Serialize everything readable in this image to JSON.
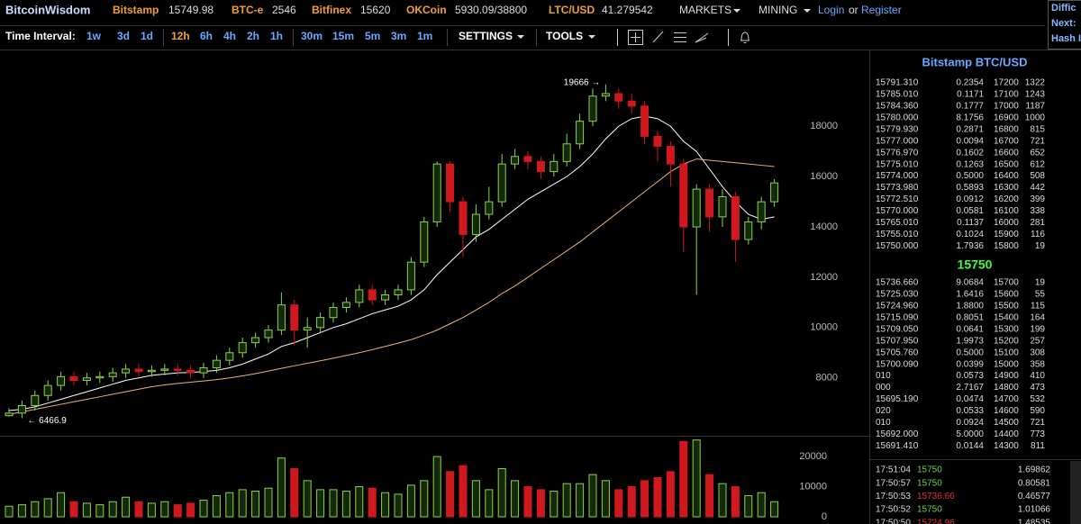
{
  "header": {
    "brand": "BitcoinWisdom",
    "tickers": [
      {
        "exchange": "Bitstamp",
        "price": "15749.98"
      },
      {
        "exchange": "BTC-e",
        "price": "2546"
      },
      {
        "exchange": "Bitfinex",
        "price": "15620"
      },
      {
        "exchange": "OKCoin",
        "price": "5930.09/38800"
      },
      {
        "exchange": "LTC/USD",
        "price": "41.279542"
      }
    ],
    "menus": [
      "MARKETS",
      "MINING"
    ],
    "login": "Login",
    "or": "or",
    "register": "Register",
    "side_box": [
      "Diffic",
      "Next:",
      "Hash I"
    ]
  },
  "toolbar": {
    "label": "Time Interval:",
    "intervals": [
      "1w",
      "3d",
      "1d",
      "12h",
      "6h",
      "4h",
      "2h",
      "1h",
      "30m",
      "15m",
      "5m",
      "3m",
      "1m"
    ],
    "active": "12h",
    "menus": [
      "SETTINGS",
      "TOOLS"
    ]
  },
  "chart": {
    "type": "candlestick",
    "open": [
      6500,
      6600,
      6900,
      7300,
      7700,
      8050,
      7900,
      8000,
      8050,
      8200,
      8350,
      8250,
      8300,
      8350,
      8300,
      8200,
      8400,
      8700,
      9000,
      9400,
      9600,
      9900,
      10900,
      9900,
      10000,
      10400,
      10800,
      11000,
      11500,
      11100,
      11300,
      11500,
      12600,
      14200,
      16500,
      15000,
      13700,
      14500,
      15000,
      16500,
      16800,
      16600,
      16200,
      16600,
      17300,
      18200,
      19200,
      19300,
      19000,
      18800,
      17600,
      17200,
      16500,
      14000,
      15500,
      14400,
      15200,
      13500,
      14200,
      15000
    ],
    "high": [
      6800,
      7100,
      7500,
      7900,
      8250,
      8250,
      8200,
      8250,
      8400,
      8550,
      8550,
      8500,
      8550,
      8550,
      8500,
      8600,
      8900,
      9200,
      9600,
      9800,
      10100,
      11400,
      11100,
      10400,
      10600,
      11000,
      11200,
      11700,
      11700,
      11500,
      11700,
      12800,
      14400,
      16600,
      16600,
      15200,
      14900,
      15600,
      16900,
      17100,
      17000,
      16800,
      16900,
      17700,
      18500,
      19500,
      19666,
      19500,
      19300,
      19000,
      17800,
      17400,
      16700,
      15700,
      15700,
      15500,
      15400,
      14400,
      15200,
      15900
    ],
    "low": [
      6466.9,
      6400,
      6700,
      7100,
      7500,
      7700,
      7700,
      7800,
      7850,
      8000,
      8050,
      8050,
      8100,
      8100,
      8000,
      8000,
      8200,
      8500,
      8800,
      9200,
      9400,
      9700,
      9300,
      9200,
      9800,
      10200,
      10600,
      10800,
      10900,
      10900,
      11100,
      11300,
      12400,
      14000,
      14600,
      12800,
      13400,
      14300,
      14800,
      16300,
      16300,
      15900,
      16000,
      16400,
      17100,
      18000,
      19000,
      18700,
      18500,
      17300,
      16600,
      15600,
      13000,
      11300,
      13800,
      14000,
      12600,
      13300,
      13900,
      14800
    ],
    "close": [
      6600,
      6900,
      7300,
      7700,
      8050,
      7900,
      8000,
      8050,
      8200,
      8350,
      8250,
      8300,
      8350,
      8300,
      8200,
      8400,
      8700,
      9000,
      9400,
      9600,
      9900,
      10900,
      9900,
      10000,
      10400,
      10800,
      11000,
      11500,
      11100,
      11300,
      11500,
      12600,
      14200,
      16500,
      15000,
      13700,
      14500,
      15000,
      16500,
      16800,
      16600,
      16200,
      16600,
      17300,
      18200,
      19200,
      19300,
      19000,
      18800,
      17600,
      17200,
      16500,
      14000,
      15500,
      14400,
      15200,
      13500,
      14200,
      15000,
      15750
    ],
    "volume": [
      3500,
      4000,
      5000,
      6000,
      8000,
      5000,
      4500,
      4000,
      5000,
      6500,
      5000,
      4500,
      5000,
      4000,
      4500,
      5500,
      7000,
      8000,
      9000,
      8500,
      9500,
      19500,
      16000,
      12000,
      9000,
      9000,
      8500,
      10000,
      9500,
      8000,
      7500,
      10500,
      12000,
      20000,
      15000,
      17000,
      12000,
      9000,
      16000,
      12000,
      10000,
      9000,
      8500,
      11000,
      11000,
      14000,
      12000,
      9000,
      10000,
      12000,
      13000,
      15000,
      25000,
      25500,
      14000,
      11000,
      10000,
      7000,
      8000,
      5000
    ],
    "averages": [
      {
        "color": "#ffffff",
        "values": [
          6700,
          6750,
          6850,
          7000,
          7150,
          7300,
          7450,
          7600,
          7750,
          7900,
          8000,
          8100,
          8150,
          8200,
          8220,
          8250,
          8300,
          8400,
          8550,
          8750,
          8950,
          9250,
          9400,
          9600,
          9800,
          10000,
          10150,
          10350,
          10550,
          10700,
          10850,
          11100,
          11500,
          12100,
          12600,
          13100,
          13600,
          13900,
          14300,
          14700,
          15100,
          15400,
          15700,
          16000,
          16400,
          16900,
          17500,
          18000,
          18300,
          18400,
          18300,
          18000,
          17400,
          17000,
          16300,
          15600,
          15000,
          14500,
          14300,
          14400
        ]
      },
      {
        "color": "#e8b27a",
        "values": [
          6550,
          6650,
          6750,
          6850,
          6950,
          7050,
          7150,
          7250,
          7350,
          7450,
          7550,
          7650,
          7720,
          7780,
          7830,
          7880,
          7930,
          8000,
          8080,
          8170,
          8270,
          8380,
          8480,
          8580,
          8680,
          8780,
          8890,
          9000,
          9120,
          9250,
          9380,
          9520,
          9700,
          9900,
          10150,
          10400,
          10700,
          11000,
          11350,
          11650,
          12000,
          12350,
          12700,
          13050,
          13400,
          13800,
          14200,
          14600,
          15000,
          15400,
          15800,
          16200,
          16500,
          16700,
          16650,
          16600,
          16550,
          16500,
          16450,
          16400
        ]
      }
    ],
    "up_color": "#8bd34a",
    "down_color": "#d0191f",
    "ylim": [
      5700,
      21050
    ],
    "yticks": [
      8000,
      10000,
      12000,
      14000,
      16000,
      18000
    ],
    "vlim": [
      0,
      26000
    ],
    "vticks": [
      0,
      10000,
      20000
    ],
    "annotations": [
      "19666 →",
      "← 6466.9"
    ]
  },
  "order_book": {
    "title": "Bitstamp BTC/USD",
    "asks": [
      [
        "15791.310",
        "0.2354",
        "17200",
        "1322"
      ],
      [
        "15785.010",
        "0.1171",
        "17100",
        "1243"
      ],
      [
        "15784.360",
        "0.1777",
        "17000",
        "1187"
      ],
      [
        "15780.000",
        "8.1756",
        "16900",
        "1000"
      ],
      [
        "15779.930",
        "0.2871",
        "16800",
        "815"
      ],
      [
        "15777.000",
        "0.0094",
        "16700",
        "721"
      ],
      [
        "15776.970",
        "0.1602",
        "16600",
        "652"
      ],
      [
        "15775.010",
        "0.1263",
        "16500",
        "612"
      ],
      [
        "15774.000",
        "0.5000",
        "16400",
        "508"
      ],
      [
        "15773.980",
        "0.5893",
        "16300",
        "442"
      ],
      [
        "15772.510",
        "0.0912",
        "16200",
        "399"
      ],
      [
        "15770.000",
        "0.0581",
        "16100",
        "338"
      ],
      [
        "15765.010",
        "0.1137",
        "16000",
        "281"
      ],
      [
        "15755.010",
        "0.1024",
        "15900",
        "116"
      ],
      [
        "15750.000",
        "1.7936",
        "15800",
        "19"
      ]
    ],
    "last": "15750",
    "bids": [
      [
        "15736.660",
        "9.0684",
        "15700",
        "19"
      ],
      [
        "15725.030",
        "1.6416",
        "15600",
        "55"
      ],
      [
        "15724.960",
        "1.8800",
        "15500",
        "115"
      ],
      [
        "15715.090",
        "0.8051",
        "15400",
        "164"
      ],
      [
        "15709.050",
        "0.0641",
        "15300",
        "199"
      ],
      [
        "15707.950",
        "1.9973",
        "15200",
        "257"
      ],
      [
        "15705.760",
        "0.5000",
        "15100",
        "308"
      ],
      [
        "15700.090",
        "0.0399",
        "15000",
        "358"
      ],
      [
        "010",
        "0.0573",
        "14900",
        "410"
      ],
      [
        "000",
        "2.7167",
        "14800",
        "473"
      ],
      [
        "15695.190",
        "0.0474",
        "14700",
        "532"
      ],
      [
        "020",
        "0.0533",
        "14600",
        "590"
      ],
      [
        "010",
        "0.0924",
        "14500",
        "721"
      ],
      [
        "15692.000",
        "5.0000",
        "14400",
        "773"
      ],
      [
        "15691.410",
        "0.0144",
        "14300",
        "811"
      ]
    ]
  },
  "trades": [
    {
      "time": "17:51:04",
      "price": "15750",
      "amount": "1.69862",
      "color": "#6fd24a"
    },
    {
      "time": "17:50:57",
      "price": "15750",
      "amount": "0.80581",
      "color": "#6fd24a"
    },
    {
      "time": "17:50:53",
      "price": "15736.66",
      "amount": "0.46577",
      "color": "#e0383e"
    },
    {
      "time": "17:50:52",
      "price": "15750",
      "amount": "1.01066",
      "color": "#6fd24a"
    },
    {
      "time": "17:50:50",
      "price": "15724.96",
      "amount": "1.48535",
      "color": "#e0383e"
    }
  ]
}
